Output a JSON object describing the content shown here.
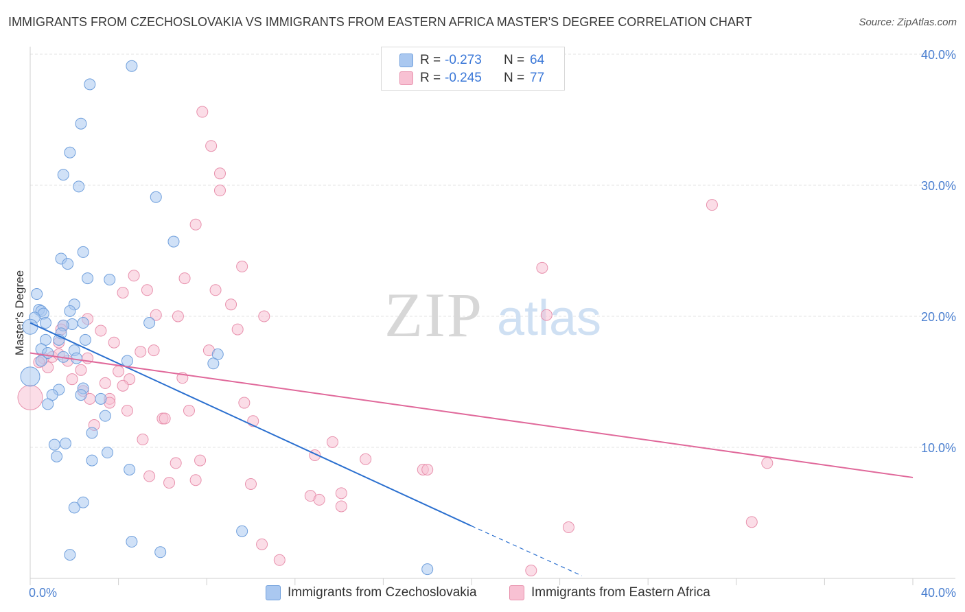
{
  "title": "IMMIGRANTS FROM CZECHOSLOVAKIA VS IMMIGRANTS FROM EASTERN AFRICA MASTER'S DEGREE CORRELATION CHART",
  "source": "Source: ZipAtlas.com",
  "watermark": {
    "zip": "ZIP",
    "atlas": "atlas"
  },
  "colors": {
    "blue_fill": "#aac8f0",
    "blue_stroke": "#6f9fdc",
    "blue_line": "#2a6fcf",
    "pink_fill": "#f8c1d3",
    "pink_stroke": "#e891ad",
    "pink_line": "#e0689a",
    "tick_text": "#4a7fd0",
    "grid": "#e3e3e3"
  },
  "legend": {
    "r_label": "R =",
    "n_label": "N =",
    "rows": [
      {
        "r": "-0.273",
        "n": "64",
        "color": "#aac8f0",
        "border": "#6f9fdc"
      },
      {
        "r": "-0.245",
        "n": "77",
        "color": "#f8c1d3",
        "border": "#e891ad"
      }
    ]
  },
  "chart_data": {
    "type": "scatter",
    "title": "IMMIGRANTS FROM CZECHOSLOVAKIA VS IMMIGRANTS FROM EASTERN AFRICA MASTER'S DEGREE CORRELATION CHART",
    "xlabel": "",
    "ylabel": "Master's Degree",
    "xlim": [
      0,
      40
    ],
    "ylim": [
      0,
      40
    ],
    "x_tick_labels": [
      "0.0%",
      "40.0%"
    ],
    "y_ticks": [
      10,
      20,
      30,
      40
    ],
    "y_tick_labels": [
      "10.0%",
      "20.0%",
      "30.0%",
      "40.0%"
    ],
    "series": [
      {
        "name": "Immigrants from Czechoslovakia",
        "r": -0.273,
        "n": 64,
        "trend": {
          "x0": 0,
          "y0": 19.5,
          "x1": 20,
          "y1": 4.0,
          "dash_to_x": 25,
          "dash_to_y": 0.2
        },
        "points": [
          [
            4.6,
            39.1
          ],
          [
            2.7,
            37.7
          ],
          [
            2.3,
            34.7
          ],
          [
            1.8,
            32.5
          ],
          [
            1.5,
            30.8
          ],
          [
            2.2,
            29.9
          ],
          [
            5.7,
            29.1
          ],
          [
            6.5,
            25.7
          ],
          [
            2.4,
            24.9
          ],
          [
            1.4,
            24.4
          ],
          [
            1.7,
            24.0
          ],
          [
            2.6,
            22.9
          ],
          [
            3.6,
            22.8
          ],
          [
            0.3,
            21.7
          ],
          [
            2.0,
            20.9
          ],
          [
            0.4,
            20.5
          ],
          [
            0.5,
            20.4
          ],
          [
            1.8,
            20.4
          ],
          [
            0.6,
            20.2
          ],
          [
            0.2,
            19.9
          ],
          [
            0.7,
            19.5
          ],
          [
            1.9,
            19.4
          ],
          [
            2.4,
            19.5
          ],
          [
            5.4,
            19.5
          ],
          [
            1.5,
            19.3
          ],
          [
            0.0,
            19.2
          ],
          [
            1.4,
            18.7
          ],
          [
            0.7,
            18.2
          ],
          [
            1.3,
            18.2
          ],
          [
            2.5,
            18.2
          ],
          [
            0.5,
            17.5
          ],
          [
            2.0,
            17.4
          ],
          [
            0.8,
            17.2
          ],
          [
            1.5,
            16.9
          ],
          [
            2.1,
            16.8
          ],
          [
            8.5,
            17.1
          ],
          [
            4.4,
            16.6
          ],
          [
            8.3,
            16.4
          ],
          [
            0.5,
            16.6
          ],
          [
            0.0,
            15.4
          ],
          [
            1.3,
            14.4
          ],
          [
            2.4,
            14.5
          ],
          [
            2.3,
            14.0
          ],
          [
            1.0,
            14.0
          ],
          [
            3.2,
            13.7
          ],
          [
            0.8,
            13.3
          ],
          [
            3.4,
            12.4
          ],
          [
            2.8,
            11.1
          ],
          [
            1.6,
            10.3
          ],
          [
            1.1,
            10.2
          ],
          [
            3.5,
            9.6
          ],
          [
            1.2,
            9.3
          ],
          [
            2.8,
            9.0
          ],
          [
            4.5,
            8.3
          ],
          [
            2.4,
            5.8
          ],
          [
            2.0,
            5.4
          ],
          [
            9.6,
            3.6
          ],
          [
            4.6,
            2.8
          ],
          [
            5.9,
            2.0
          ],
          [
            1.8,
            1.8
          ],
          [
            18.0,
            0.7
          ]
        ],
        "sizes": {
          "0.0,15.4": 14,
          "0.0,19.2": 11
        }
      },
      {
        "name": "Immigrants from Eastern Africa",
        "r": -0.245,
        "n": 77,
        "trend": {
          "x0": 0,
          "y0": 17.2,
          "x1": 40,
          "y1": 7.7
        },
        "points": [
          [
            7.8,
            35.6
          ],
          [
            8.2,
            33.0
          ],
          [
            8.6,
            30.9
          ],
          [
            8.6,
            29.6
          ],
          [
            30.9,
            28.5
          ],
          [
            7.5,
            27.0
          ],
          [
            9.6,
            23.8
          ],
          [
            23.2,
            23.7
          ],
          [
            4.7,
            23.1
          ],
          [
            7.0,
            22.9
          ],
          [
            5.3,
            22.0
          ],
          [
            8.4,
            22.0
          ],
          [
            4.2,
            21.8
          ],
          [
            9.1,
            20.9
          ],
          [
            5.7,
            20.1
          ],
          [
            6.7,
            20.0
          ],
          [
            10.6,
            20.0
          ],
          [
            23.4,
            20.1
          ],
          [
            2.6,
            19.8
          ],
          [
            1.5,
            19.3
          ],
          [
            1.4,
            19.0
          ],
          [
            9.4,
            19.0
          ],
          [
            3.2,
            18.9
          ],
          [
            1.3,
            18.0
          ],
          [
            3.8,
            18.0
          ],
          [
            8.1,
            17.4
          ],
          [
            5.0,
            17.3
          ],
          [
            5.6,
            17.4
          ],
          [
            1.0,
            16.9
          ],
          [
            0.6,
            16.8
          ],
          [
            1.7,
            16.6
          ],
          [
            2.6,
            16.8
          ],
          [
            1.3,
            17.1
          ],
          [
            0.8,
            16.1
          ],
          [
            2.3,
            15.9
          ],
          [
            4.0,
            15.8
          ],
          [
            0.4,
            16.5
          ],
          [
            1.9,
            15.2
          ],
          [
            4.5,
            15.2
          ],
          [
            3.4,
            14.9
          ],
          [
            6.9,
            15.3
          ],
          [
            4.2,
            14.7
          ],
          [
            2.4,
            14.3
          ],
          [
            3.6,
            13.7
          ],
          [
            2.7,
            13.7
          ],
          [
            9.7,
            13.4
          ],
          [
            0.0,
            13.8
          ],
          [
            3.6,
            13.4
          ],
          [
            4.4,
            12.8
          ],
          [
            7.2,
            12.8
          ],
          [
            6.0,
            12.2
          ],
          [
            6.1,
            12.2
          ],
          [
            10.1,
            12.0
          ],
          [
            2.9,
            11.7
          ],
          [
            5.1,
            10.6
          ],
          [
            13.7,
            10.4
          ],
          [
            12.9,
            9.4
          ],
          [
            15.2,
            9.1
          ],
          [
            7.7,
            9.0
          ],
          [
            6.6,
            8.8
          ],
          [
            33.4,
            8.8
          ],
          [
            17.8,
            8.3
          ],
          [
            18.0,
            8.3
          ],
          [
            5.4,
            7.8
          ],
          [
            7.5,
            7.5
          ],
          [
            6.3,
            7.3
          ],
          [
            10.0,
            7.2
          ],
          [
            14.1,
            6.5
          ],
          [
            12.7,
            6.3
          ],
          [
            13.1,
            6.0
          ],
          [
            14.1,
            5.5
          ],
          [
            32.7,
            4.3
          ],
          [
            24.4,
            3.9
          ],
          [
            10.5,
            2.6
          ],
          [
            11.3,
            1.4
          ],
          [
            22.7,
            0.6
          ]
        ],
        "sizes": {
          "0.0,13.8": 18
        }
      }
    ]
  },
  "bottom_legend": [
    {
      "label": "Immigrants from Czechoslovakia",
      "color": "#aac8f0",
      "border": "#6f9fdc"
    },
    {
      "label": "Immigrants from Eastern Africa",
      "color": "#f8c1d3",
      "border": "#e891ad"
    }
  ]
}
